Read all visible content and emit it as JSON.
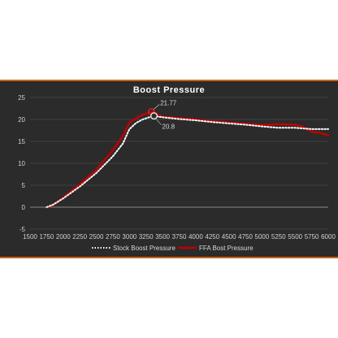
{
  "chart_data": {
    "type": "line",
    "title": "Boost Pressure",
    "xlabel": "",
    "ylabel": "",
    "xlim": [
      1500,
      6000
    ],
    "ylim": [
      -5,
      25
    ],
    "x_ticks": [
      "1500",
      "1750",
      "2000",
      "2250",
      "2500",
      "2750",
      "3000",
      "3250",
      "3500",
      "3750",
      "4000",
      "4250",
      "4500",
      "4750",
      "5000",
      "5250",
      "5500",
      "5750",
      "6000"
    ],
    "y_ticks": [
      "-5",
      "0",
      "5",
      "10",
      "15",
      "20",
      "25"
    ],
    "grid": true,
    "legend_position": "bottom",
    "series": [
      {
        "name": "Stock Boost Pressure",
        "color": "#ffffff",
        "style": "dotted",
        "x": [
          1750,
          1850,
          2000,
          2250,
          2500,
          2750,
          2900,
          3000,
          3100,
          3200,
          3300,
          3350,
          3500,
          3750,
          4000,
          4250,
          4500,
          4750,
          5000,
          5250,
          5500,
          5750,
          6000
        ],
        "y": [
          0,
          0.6,
          2,
          4.7,
          7.8,
          11.6,
          14.5,
          17.8,
          19.2,
          20,
          20.5,
          20.8,
          20.5,
          20.1,
          19.8,
          19.4,
          19.1,
          18.8,
          18.4,
          18.1,
          18.1,
          17.8,
          17.8
        ]
      },
      {
        "name": "FFA Bost Pressure",
        "color": "#c00000",
        "style": "solid",
        "x": [
          1750,
          1850,
          2000,
          2250,
          2500,
          2750,
          2900,
          3000,
          3100,
          3200,
          3300,
          3350,
          3500,
          3750,
          4000,
          4250,
          4500,
          4750,
          5000,
          5250,
          5500,
          5600,
          5700,
          5750,
          5850,
          6000
        ],
        "y": [
          -0.1,
          0.5,
          2.2,
          5.2,
          8.5,
          13,
          16.2,
          19.3,
          20.3,
          21.1,
          21.5,
          21.77,
          20.6,
          20.3,
          20,
          19.6,
          19.3,
          19,
          18.7,
          18.9,
          18.8,
          18.4,
          17.6,
          17.2,
          17,
          16.4
        ]
      }
    ],
    "annotations": [
      {
        "text": "21.77",
        "x": 3330,
        "y": 21.77,
        "series": "FFA Bost Pressure"
      },
      {
        "text": "20.8",
        "x": 3370,
        "y": 20.8,
        "series": "Stock Boost Pressure"
      }
    ]
  }
}
